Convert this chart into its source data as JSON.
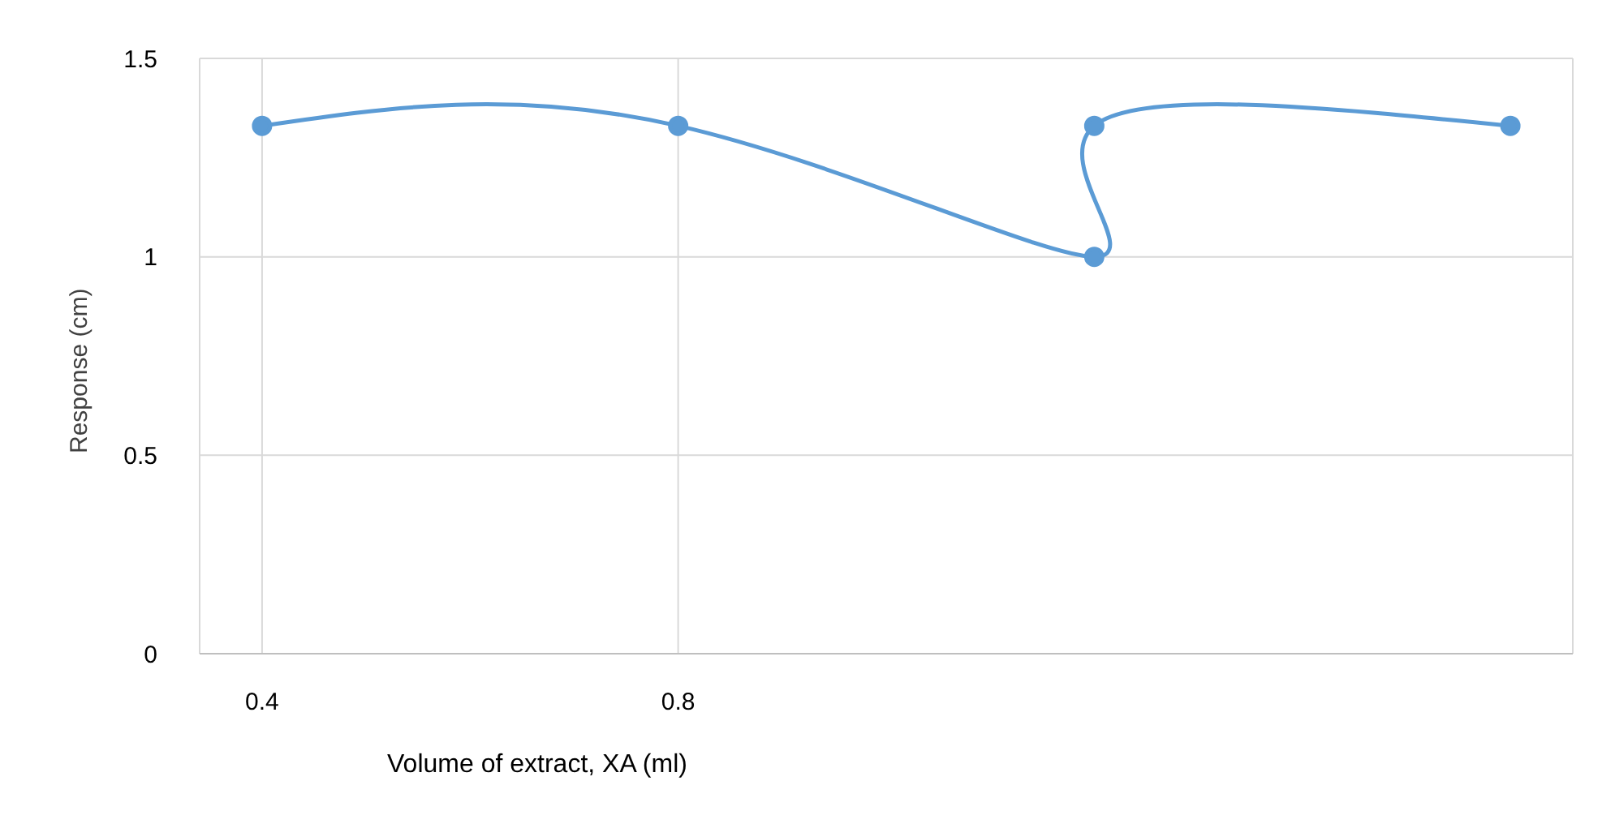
{
  "chart_data": {
    "type": "line",
    "xlabel": "Volume of extract, XA (ml)",
    "ylabel": "Response (cm)",
    "x": [
      0.4,
      0.8,
      1.2,
      1.2,
      1.6
    ],
    "series": [
      {
        "color": "#5b9bd5",
        "values": [
          1.33,
          1.33,
          1.0,
          1.33,
          1.33
        ]
      }
    ],
    "xlim": [
      0.34,
      1.66
    ],
    "xticks": [
      0.4,
      0.8
    ],
    "ylim": [
      0,
      1.5
    ],
    "yticks": [
      0,
      0.5,
      1,
      1.5
    ],
    "grid": true,
    "marker": "circle",
    "line_style": "solid",
    "legend": false
  }
}
